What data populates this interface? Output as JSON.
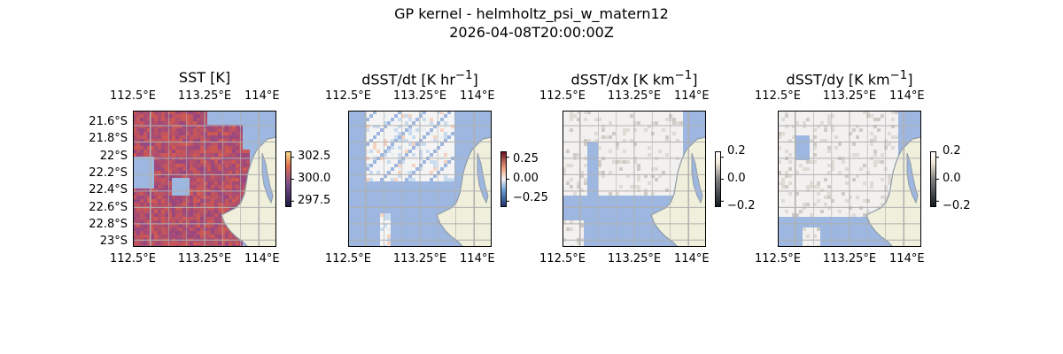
{
  "figure": {
    "title": "GP kernel - helmholtz_psi_w_matern12",
    "subtitle": "2026-04-08T20:00:00Z"
  },
  "colors": {
    "ocean": "#9db7e0",
    "land": "#efefdb",
    "coast": "#8f9aa8",
    "grid": "#b0b0b0",
    "sst_low": "#7a4c8c",
    "sst_high": "#d35f5f"
  },
  "panels": [
    {
      "name": "sst",
      "title_html": "SST [K]",
      "lon_ticks": [
        "112.5°E",
        "113.25°E",
        "114°E"
      ],
      "lat_ticks": [
        "21.6°S",
        "21.8°S",
        "22°S",
        "22.2°S",
        "22.4°S",
        "22.6°S",
        "22.8°S",
        "23°S"
      ],
      "colorbar": {
        "colormap": "thermal",
        "ticks": [
          "302.5",
          "300.0",
          "297.5"
        ]
      }
    },
    {
      "name": "dsst-dt",
      "title_html": "dSST/dt [K hr<sup>−1</sup>]",
      "lon_ticks": [
        "112.5°E",
        "113.25°E",
        "114°E"
      ],
      "colorbar": {
        "colormap": "diverging-blue-red",
        "ticks": [
          "0.25",
          "0.00",
          "−0.25"
        ]
      }
    },
    {
      "name": "dsst-dx",
      "title_html": "dSST/dx [K km<sup>−1</sup>]",
      "lon_ticks": [
        "112.5°E",
        "113.25°E",
        "114°E"
      ],
      "colorbar": {
        "colormap": "diverging-dark-light",
        "ticks": [
          "0.2",
          "0.0",
          "−0.2"
        ]
      }
    },
    {
      "name": "dsst-dy",
      "title_html": "dSST/dy [K km<sup>−1</sup>]",
      "lon_ticks": [
        "112.5°E",
        "113.25°E",
        "114°E"
      ],
      "colorbar": {
        "colormap": "diverging-dark-light",
        "ticks": [
          "0.2",
          "0.0",
          "−0.2"
        ]
      }
    }
  ]
}
